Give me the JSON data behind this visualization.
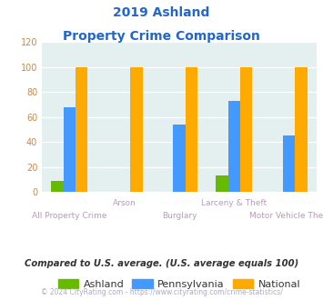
{
  "title_line1": "2019 Ashland",
  "title_line2": "Property Crime Comparison",
  "categories": [
    "All Property Crime",
    "Arson",
    "Burglary",
    "Larceny & Theft",
    "Motor Vehicle Theft"
  ],
  "ashland": [
    9,
    0,
    0,
    13,
    0
  ],
  "pennsylvania": [
    68,
    0,
    54,
    73,
    45
  ],
  "national": [
    100,
    100,
    100,
    100,
    100
  ],
  "color_ashland": "#66bb00",
  "color_pennsylvania": "#4499ff",
  "color_national": "#ffaa00",
  "ylim": [
    0,
    120
  ],
  "yticks": [
    0,
    20,
    40,
    60,
    80,
    100,
    120
  ],
  "background_plot": "#e4f0f0",
  "background_fig": "#ffffff",
  "title_color": "#2266cc",
  "xlabel_color": "#bb99bb",
  "ytick_color": "#cc8844",
  "footer_text": "Compared to U.S. average. (U.S. average equals 100)",
  "footer_color": "#333333",
  "credit_text": "© 2024 CityRating.com - https://www.cityrating.com/crime-statistics/",
  "credit_color": "#aaaacc",
  "legend_labels": [
    "Ashland",
    "Pennsylvania",
    "National"
  ],
  "bar_width": 0.22,
  "group_positions": [
    0,
    1,
    2,
    3,
    4
  ],
  "upper_label_indices": [
    1,
    3
  ],
  "upper_labels": [
    "Arson",
    "Larceny & Theft"
  ],
  "lower_label_indices": [
    0,
    2,
    4
  ],
  "lower_labels": [
    "All Property Crime",
    "Burglary",
    "Motor Vehicle Theft"
  ]
}
